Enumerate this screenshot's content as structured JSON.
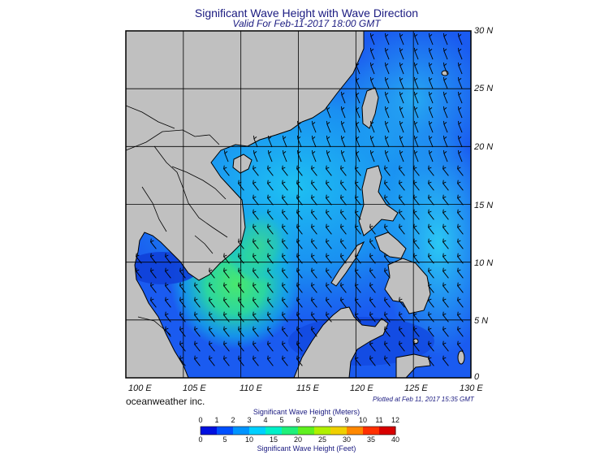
{
  "title": "Significant Wave Height with Wave Direction",
  "subtitle": "Valid For Feb-11-2017 18:00 GMT",
  "map": {
    "lon_range": [
      100,
      130
    ],
    "lat_range": [
      0,
      30
    ],
    "grid_step_deg": 5,
    "lon_labels": [
      "100 E",
      "105 E",
      "110 E",
      "115 E",
      "120 E",
      "125 E",
      "130 E"
    ],
    "lat_labels": [
      "30 N",
      "25 N",
      "20 N",
      "15 N",
      "10 N",
      "5 N",
      "0"
    ],
    "land_color": "#c0c0c0",
    "ocean_color": "#1a5bf0",
    "prevailing_wave_direction": "from NE toward SW"
  },
  "credit": "oceanweather inc.",
  "plotted": "Plotted at Feb 11, 2017 15:35 GMT",
  "legend": {
    "meters_title": "Significant Wave Height (Meters)",
    "meters_ticks": [
      "0",
      "1",
      "2",
      "3",
      "4",
      "5",
      "6",
      "7",
      "8",
      "9",
      "10",
      "11",
      "12"
    ],
    "feet_title": "Significant Wave Height (Feet)",
    "feet_ticks": [
      "0",
      "5",
      "10",
      "15",
      "20",
      "25",
      "30",
      "35",
      "40"
    ],
    "colors": [
      "#00009c",
      "#0010e0",
      "#0050ff",
      "#0094ff",
      "#00d0ff",
      "#00f0c8",
      "#20f07a",
      "#60f020",
      "#b0f000",
      "#f0d000",
      "#ff8800",
      "#ff3000",
      "#d80000"
    ]
  }
}
